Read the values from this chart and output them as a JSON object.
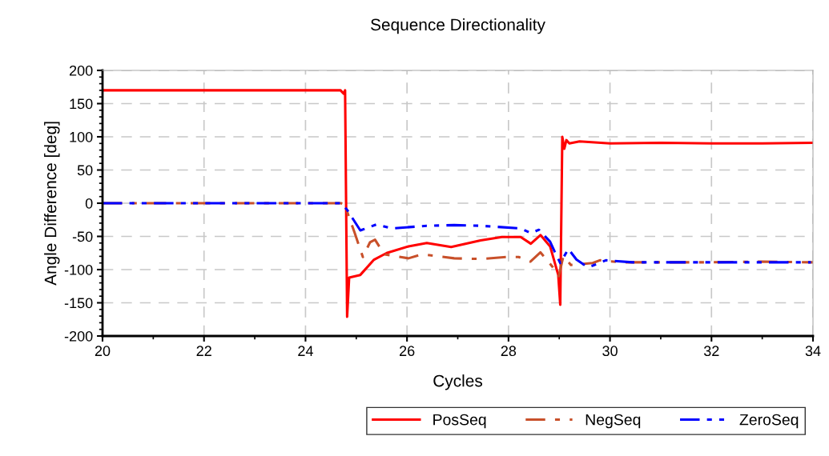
{
  "chart_data": {
    "type": "line",
    "title": "Sequence Directionality",
    "xlabel": "Cycles",
    "ylabel": "Angle Difference [deg]",
    "xlim": [
      20,
      34
    ],
    "xticks": [
      20,
      22,
      24,
      26,
      28,
      30,
      32,
      34
    ],
    "ylim": [
      -200,
      200
    ],
    "yticks": [
      -200,
      -150,
      -100,
      -50,
      0,
      50,
      100,
      150,
      200
    ],
    "grid": true,
    "legend": "bottom",
    "marker": "none",
    "series": [
      {
        "name": "PosSeq",
        "color": "#ff0000",
        "line_style": "solid",
        "x": [
          20,
          24.69,
          24.75,
          24.78,
          24.82,
          24.86,
          25.08,
          25.35,
          25.6,
          26.03,
          26.39,
          26.87,
          27.45,
          27.87,
          28.24,
          28.44,
          28.63,
          28.82,
          28.98,
          29.02,
          29.06,
          29.1,
          29.14,
          29.2,
          29.4,
          30,
          31,
          32,
          33,
          34
        ],
        "values": [
          170,
          170,
          165,
          170,
          -171,
          -112,
          -108,
          -85,
          -75,
          -65,
          -60,
          -66,
          -56,
          -51,
          -51,
          -61,
          -48,
          -65,
          -108,
          -153,
          100,
          82,
          95,
          90,
          93,
          90,
          91,
          90,
          90,
          91
        ]
      },
      {
        "name": "NegSeq",
        "color": "#c8502a",
        "line_style": "dashdot",
        "x": [
          20,
          24.7,
          24.77,
          24.97,
          25.13,
          25.27,
          25.37,
          25.55,
          26.03,
          26.29,
          26.93,
          27.45,
          27.97,
          28.2,
          28.43,
          28.63,
          28.87,
          28.99,
          29.08,
          29.23,
          29.66,
          29.8,
          30.2,
          31,
          32,
          33,
          34
        ],
        "values": [
          0,
          0,
          -2,
          -45,
          -81,
          -59,
          -55,
          -77,
          -83,
          -77,
          -83,
          -84,
          -81,
          -81,
          -88,
          -74,
          -96,
          -110,
          -80,
          -93,
          -90,
          -86,
          -89,
          -89,
          -89,
          -88,
          -89
        ]
      },
      {
        "name": "ZeroSeq",
        "color": "#0000ff",
        "line_style": "dashdotdot",
        "x": [
          20,
          24.7,
          24.82,
          25.08,
          25.4,
          25.71,
          26.39,
          26.93,
          27.45,
          28.24,
          28.44,
          28.6,
          28.82,
          28.91,
          29.02,
          29.18,
          29.34,
          29.55,
          29.66,
          29.92,
          30.44,
          31,
          32,
          33,
          33.96
        ],
        "values": [
          0,
          0,
          -10,
          -41,
          -32,
          -38,
          -34,
          -33,
          -34,
          -38,
          -45,
          -40,
          -58,
          -73,
          -90,
          -69,
          -85,
          -96,
          -94,
          -86,
          -89,
          -89,
          -89,
          -89,
          -89
        ]
      }
    ]
  }
}
